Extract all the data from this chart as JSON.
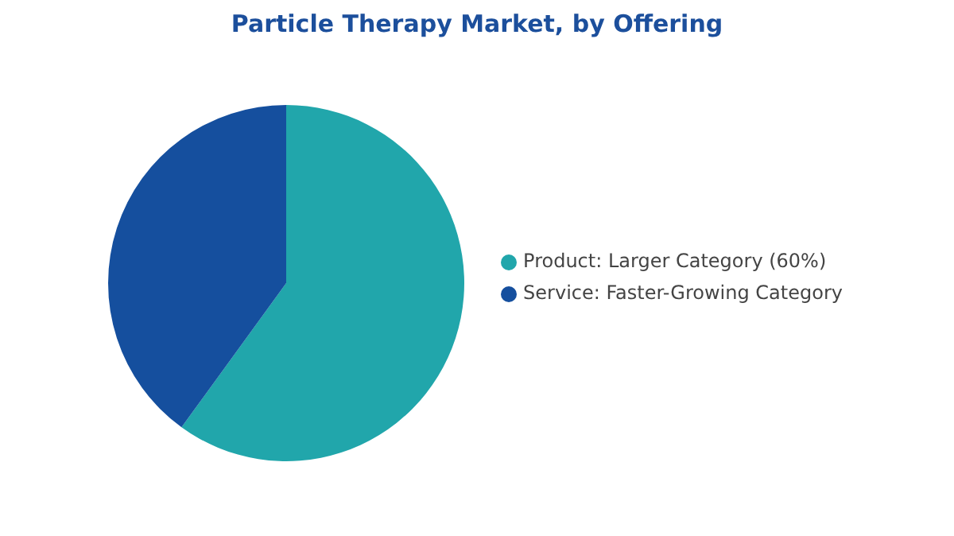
{
  "chart_data": {
    "type": "pie",
    "title": "Particle Therapy Market, by Offering",
    "categories": [
      "Product:  Larger Category (60%)",
      "Service:  Faster-Growing Category"
    ],
    "values": [
      60,
      40
    ],
    "colors": [
      "#21a6ab",
      "#154f9e"
    ],
    "legend": "right"
  }
}
